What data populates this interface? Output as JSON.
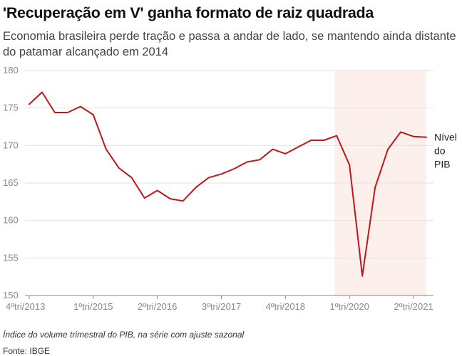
{
  "title": "'Recuperação em V' ganha formato de raiz quadrada",
  "subtitle": "Economia brasileira perde tração e passa a andar de lado, se mantendo ainda distante do patamar alcançado em 2014",
  "note": "Índice do volume trimestral do PIB, na série com ajuste sazonal",
  "source": "Fonte: IBGE",
  "colors": {
    "line": "#c0151b",
    "highlight": "#fdf0ec",
    "grid": "#e2e2e2",
    "axis": "#888888"
  },
  "chart_data": {
    "type": "line",
    "title": "'Recuperação em V' ganha formato de raiz quadrada",
    "xlabel": "",
    "ylabel": "",
    "ylim": [
      150,
      180
    ],
    "yticks": [
      150,
      155,
      160,
      165,
      170,
      175,
      180
    ],
    "grid": true,
    "x": [
      "4ºtri/2013",
      "1ºtri/2014",
      "2ºtri/2014",
      "3ºtri/2014",
      "4ºtri/2014",
      "1ºtri/2015",
      "2ºtri/2015",
      "3ºtri/2015",
      "4ºtri/2015",
      "1ºtri/2016",
      "2ºtri/2016",
      "3ºtri/2016",
      "4ºtri/2016",
      "1ºtri/2017",
      "2ºtri/2017",
      "3ºtri/2017",
      "4ºtri/2017",
      "1ºtri/2018",
      "2ºtri/2018",
      "3ºtri/2018",
      "4ºtri/2018",
      "1ºtri/2019",
      "2ºtri/2019",
      "3ºtri/2019",
      "4ºtri/2019",
      "1ºtri/2020",
      "2ºtri/2020",
      "3ºtri/2020",
      "4ºtri/2020",
      "1ºtri/2021",
      "2ºtri/2021",
      "3ºtri/2021"
    ],
    "xtick_labels": [
      {
        "index": 0,
        "label": "4ºtri/2013"
      },
      {
        "index": 5,
        "label": "1ºtri/2015"
      },
      {
        "index": 10,
        "label": "2ºtri/2016"
      },
      {
        "index": 15,
        "label": "3ºtri/2017"
      },
      {
        "index": 20,
        "label": "4ºtri/2018"
      },
      {
        "index": 25,
        "label": "1ºtri/2020"
      },
      {
        "index": 30,
        "label": "2ºtri/2021"
      }
    ],
    "highlight_range": {
      "from_index": 24,
      "to_index": 31
    },
    "series": [
      {
        "name": "Nível do PIB",
        "values": [
          175.5,
          177.1,
          174.4,
          174.4,
          175.2,
          174.1,
          169.5,
          167.0,
          165.7,
          163.0,
          164.0,
          162.9,
          162.6,
          164.4,
          165.7,
          166.2,
          166.9,
          167.8,
          168.1,
          169.5,
          168.9,
          169.8,
          170.7,
          170.7,
          171.3,
          167.4,
          152.6,
          164.4,
          169.5,
          171.8,
          171.2,
          171.1
        ]
      }
    ],
    "series_label_lines": [
      "Nível",
      "do",
      "PIB"
    ]
  }
}
